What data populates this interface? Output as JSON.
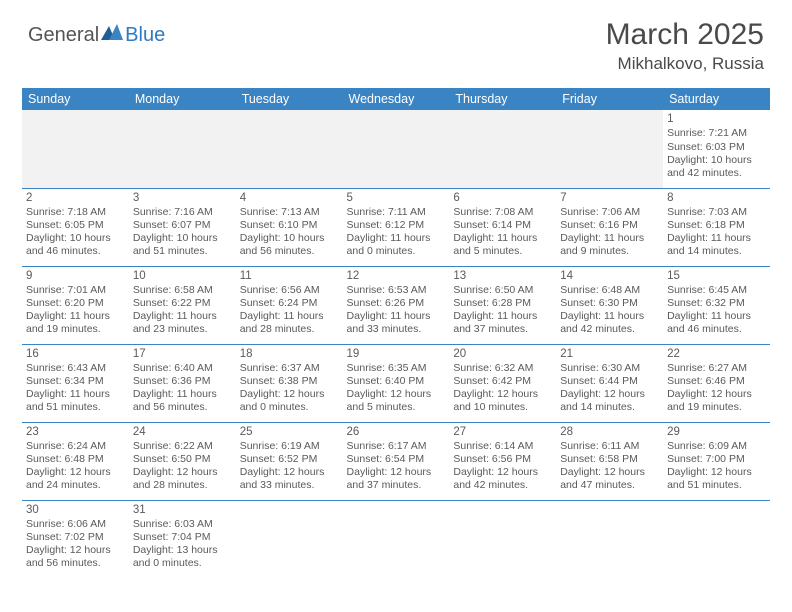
{
  "logo": {
    "general": "General",
    "blue": "Blue"
  },
  "title": "March 2025",
  "location": "Mikhalkovo, Russia",
  "header_bg": "#3b84c4",
  "divider_color": "#3b84c4",
  "days": [
    "Sunday",
    "Monday",
    "Tuesday",
    "Wednesday",
    "Thursday",
    "Friday",
    "Saturday"
  ],
  "weeks": [
    [
      null,
      null,
      null,
      null,
      null,
      null,
      {
        "n": "1",
        "sr": "7:21 AM",
        "ss": "6:03 PM",
        "dl": "10 hours and 42 minutes."
      }
    ],
    [
      {
        "n": "2",
        "sr": "7:18 AM",
        "ss": "6:05 PM",
        "dl": "10 hours and 46 minutes."
      },
      {
        "n": "3",
        "sr": "7:16 AM",
        "ss": "6:07 PM",
        "dl": "10 hours and 51 minutes."
      },
      {
        "n": "4",
        "sr": "7:13 AM",
        "ss": "6:10 PM",
        "dl": "10 hours and 56 minutes."
      },
      {
        "n": "5",
        "sr": "7:11 AM",
        "ss": "6:12 PM",
        "dl": "11 hours and 0 minutes."
      },
      {
        "n": "6",
        "sr": "7:08 AM",
        "ss": "6:14 PM",
        "dl": "11 hours and 5 minutes."
      },
      {
        "n": "7",
        "sr": "7:06 AM",
        "ss": "6:16 PM",
        "dl": "11 hours and 9 minutes."
      },
      {
        "n": "8",
        "sr": "7:03 AM",
        "ss": "6:18 PM",
        "dl": "11 hours and 14 minutes."
      }
    ],
    [
      {
        "n": "9",
        "sr": "7:01 AM",
        "ss": "6:20 PM",
        "dl": "11 hours and 19 minutes."
      },
      {
        "n": "10",
        "sr": "6:58 AM",
        "ss": "6:22 PM",
        "dl": "11 hours and 23 minutes."
      },
      {
        "n": "11",
        "sr": "6:56 AM",
        "ss": "6:24 PM",
        "dl": "11 hours and 28 minutes."
      },
      {
        "n": "12",
        "sr": "6:53 AM",
        "ss": "6:26 PM",
        "dl": "11 hours and 33 minutes."
      },
      {
        "n": "13",
        "sr": "6:50 AM",
        "ss": "6:28 PM",
        "dl": "11 hours and 37 minutes."
      },
      {
        "n": "14",
        "sr": "6:48 AM",
        "ss": "6:30 PM",
        "dl": "11 hours and 42 minutes."
      },
      {
        "n": "15",
        "sr": "6:45 AM",
        "ss": "6:32 PM",
        "dl": "11 hours and 46 minutes."
      }
    ],
    [
      {
        "n": "16",
        "sr": "6:43 AM",
        "ss": "6:34 PM",
        "dl": "11 hours and 51 minutes."
      },
      {
        "n": "17",
        "sr": "6:40 AM",
        "ss": "6:36 PM",
        "dl": "11 hours and 56 minutes."
      },
      {
        "n": "18",
        "sr": "6:37 AM",
        "ss": "6:38 PM",
        "dl": "12 hours and 0 minutes."
      },
      {
        "n": "19",
        "sr": "6:35 AM",
        "ss": "6:40 PM",
        "dl": "12 hours and 5 minutes."
      },
      {
        "n": "20",
        "sr": "6:32 AM",
        "ss": "6:42 PM",
        "dl": "12 hours and 10 minutes."
      },
      {
        "n": "21",
        "sr": "6:30 AM",
        "ss": "6:44 PM",
        "dl": "12 hours and 14 minutes."
      },
      {
        "n": "22",
        "sr": "6:27 AM",
        "ss": "6:46 PM",
        "dl": "12 hours and 19 minutes."
      }
    ],
    [
      {
        "n": "23",
        "sr": "6:24 AM",
        "ss": "6:48 PM",
        "dl": "12 hours and 24 minutes."
      },
      {
        "n": "24",
        "sr": "6:22 AM",
        "ss": "6:50 PM",
        "dl": "12 hours and 28 minutes."
      },
      {
        "n": "25",
        "sr": "6:19 AM",
        "ss": "6:52 PM",
        "dl": "12 hours and 33 minutes."
      },
      {
        "n": "26",
        "sr": "6:17 AM",
        "ss": "6:54 PM",
        "dl": "12 hours and 37 minutes."
      },
      {
        "n": "27",
        "sr": "6:14 AM",
        "ss": "6:56 PM",
        "dl": "12 hours and 42 minutes."
      },
      {
        "n": "28",
        "sr": "6:11 AM",
        "ss": "6:58 PM",
        "dl": "12 hours and 47 minutes."
      },
      {
        "n": "29",
        "sr": "6:09 AM",
        "ss": "7:00 PM",
        "dl": "12 hours and 51 minutes."
      }
    ],
    [
      {
        "n": "30",
        "sr": "6:06 AM",
        "ss": "7:02 PM",
        "dl": "12 hours and 56 minutes."
      },
      {
        "n": "31",
        "sr": "6:03 AM",
        "ss": "7:04 PM",
        "dl": "13 hours and 0 minutes."
      },
      null,
      null,
      null,
      null,
      null
    ]
  ],
  "labels": {
    "sunrise": "Sunrise:",
    "sunset": "Sunset:",
    "daylight": "Daylight:"
  }
}
